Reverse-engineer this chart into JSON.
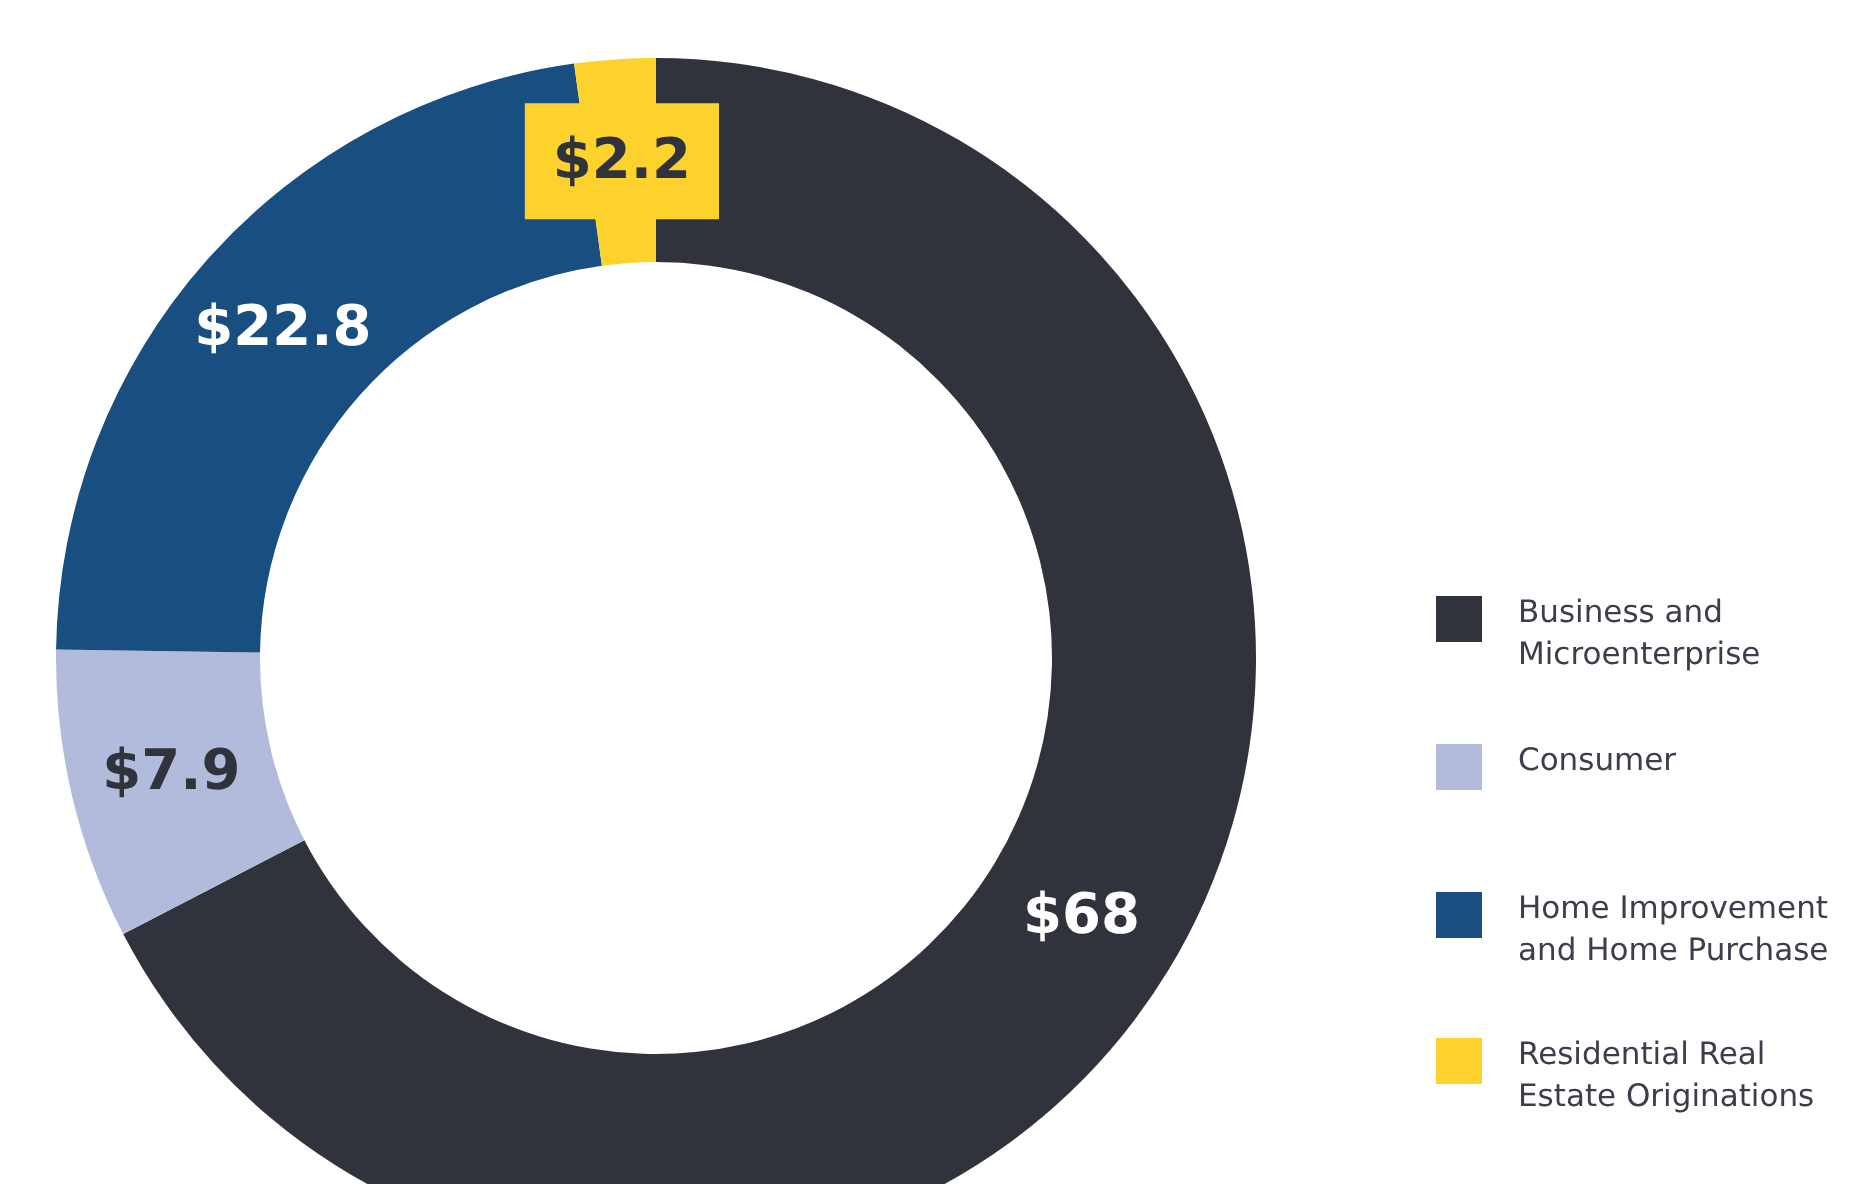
{
  "chart_data": {
    "type": "donut",
    "categories": [
      "Business and Microenterprise",
      "Consumer",
      "Home Improvement and Home Purchase",
      "Residential Real Estate Originations"
    ],
    "values": [
      68,
      7.9,
      22.8,
      2.2
    ],
    "colors": [
      "#31333c",
      "#b3bbdd",
      "#184f80",
      "#fdd22c"
    ],
    "value_labels": [
      "$68",
      "$7.9",
      "$22.8",
      "$2.2"
    ],
    "legend": "right"
  }
}
